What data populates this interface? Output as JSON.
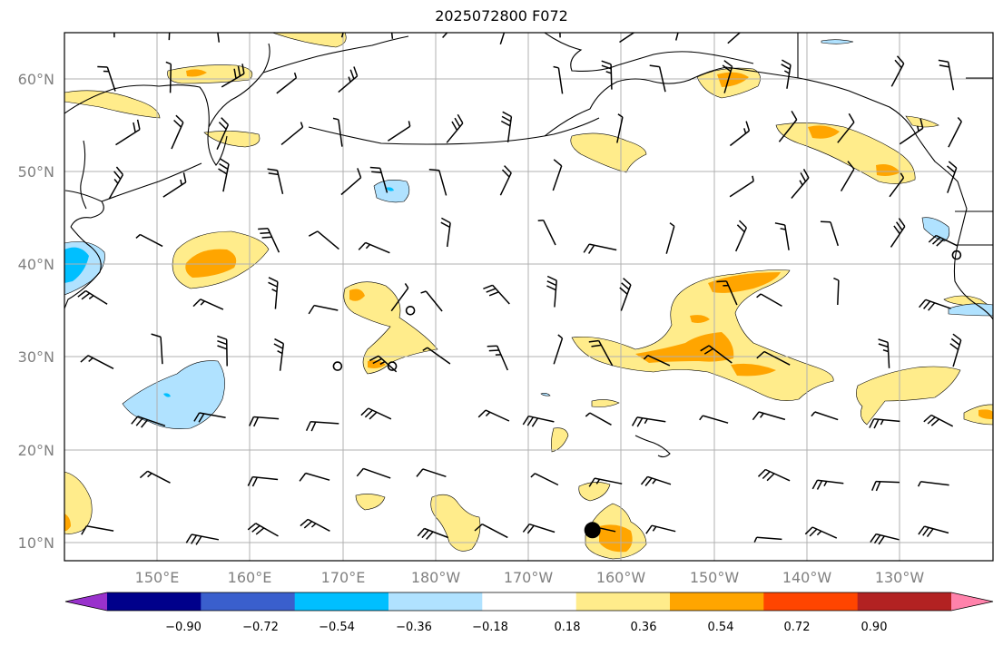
{
  "title": "2025072800 F072",
  "map": {
    "lat_labels": [
      "60°N",
      "50°N",
      "40°N",
      "30°N",
      "20°N",
      "10°N"
    ],
    "lon_labels": [
      "150°E",
      "160°E",
      "170°E",
      "180°W",
      "170°W",
      "160°W",
      "150°W",
      "140°W",
      "130°W"
    ],
    "lat_values": [
      60,
      50,
      40,
      30,
      20,
      10
    ],
    "lon_values": [
      150,
      160,
      170,
      180,
      190,
      200,
      210,
      220,
      230
    ],
    "extent": {
      "lon_min": 140,
      "lon_max": 242,
      "lat_min": 8,
      "lat_max": 65
    },
    "marker": {
      "name": "point-marker",
      "lon": 198,
      "lat": 11.3
    },
    "circles": [
      {
        "lon": 178,
        "lat": 35
      },
      {
        "lon": 170,
        "lat": 29
      },
      {
        "lon": 176,
        "lat": 29
      },
      {
        "lon": 238,
        "lat": 41
      }
    ]
  },
  "colorbar": {
    "ticks": [
      "−0.90",
      "−0.72",
      "−0.54",
      "−0.36",
      "−0.18",
      "0.18",
      "0.36",
      "0.54",
      "0.72",
      "0.90"
    ],
    "colors": [
      "#9932cc",
      "#00008b",
      "#3a5fcd",
      "#00bfff",
      "#b0e2ff",
      "#ffffff",
      "#ffec8b",
      "#ffa500",
      "#ff4500",
      "#b22222",
      "#ff82ab"
    ]
  }
}
